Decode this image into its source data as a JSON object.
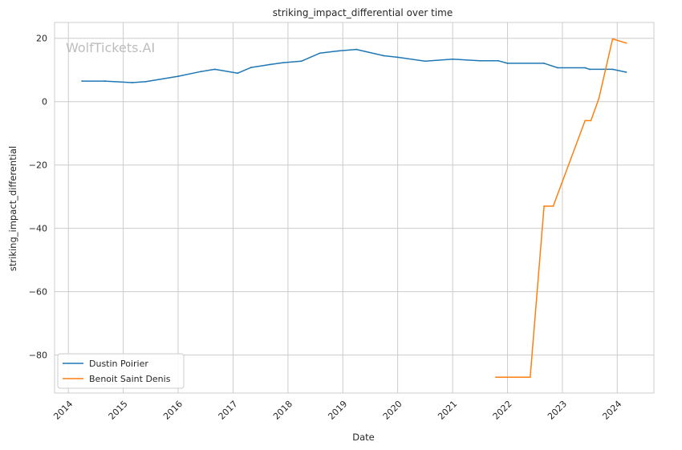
{
  "chart_data": {
    "type": "line",
    "title": "striking_impact_differential over time",
    "xlabel": "Date",
    "ylabel": "striking_impact_differential",
    "watermark": "WolfTickets.AI",
    "x_ticks": [
      "2014",
      "2015",
      "2016",
      "2017",
      "2018",
      "2019",
      "2020",
      "2021",
      "2022",
      "2023",
      "2024"
    ],
    "y_ticks": [
      20,
      0,
      -20,
      -40,
      -60,
      -80
    ],
    "xlim": [
      "2013-10-01",
      "2024-09-01"
    ],
    "ylim": [
      -92,
      25
    ],
    "grid": true,
    "legend_position": "lower-left",
    "series": [
      {
        "name": "Dustin Poirier",
        "color": "#1f77b4",
        "points": [
          [
            "2014-04-01",
            6.5
          ],
          [
            "2014-09-01",
            6.5
          ],
          [
            "2015-03-01",
            6.0
          ],
          [
            "2015-06-01",
            6.3
          ],
          [
            "2016-01-01",
            8.0
          ],
          [
            "2016-06-01",
            9.5
          ],
          [
            "2016-09-01",
            10.2
          ],
          [
            "2017-02-01",
            9.0
          ],
          [
            "2017-05-01",
            10.8
          ],
          [
            "2017-09-01",
            11.7
          ],
          [
            "2017-12-01",
            12.3
          ],
          [
            "2018-04-01",
            12.8
          ],
          [
            "2018-08-01",
            15.3
          ],
          [
            "2018-12-01",
            16.0
          ],
          [
            "2019-04-01",
            16.5
          ],
          [
            "2019-10-01",
            14.5
          ],
          [
            "2020-01-01",
            14.0
          ],
          [
            "2020-07-01",
            12.8
          ],
          [
            "2021-01-01",
            13.4
          ],
          [
            "2021-07-01",
            12.9
          ],
          [
            "2021-11-01",
            12.9
          ],
          [
            "2022-01-01",
            12.1
          ],
          [
            "2022-09-01",
            12.1
          ],
          [
            "2022-12-01",
            10.7
          ],
          [
            "2023-06-01",
            10.7
          ],
          [
            "2023-07-01",
            10.2
          ],
          [
            "2023-12-01",
            10.2
          ],
          [
            "2024-03-01",
            9.3
          ]
        ]
      },
      {
        "name": "Benoit Saint Denis",
        "color": "#ff7f0e",
        "points": [
          [
            "2021-10-15",
            -87
          ],
          [
            "2022-06-01",
            -87
          ],
          [
            "2022-09-01",
            -33
          ],
          [
            "2022-11-01",
            -33
          ],
          [
            "2023-06-01",
            -6
          ],
          [
            "2023-07-10",
            -6
          ],
          [
            "2023-09-01",
            1
          ],
          [
            "2023-12-01",
            19.8
          ],
          [
            "2024-03-01",
            18.5
          ]
        ]
      }
    ]
  }
}
